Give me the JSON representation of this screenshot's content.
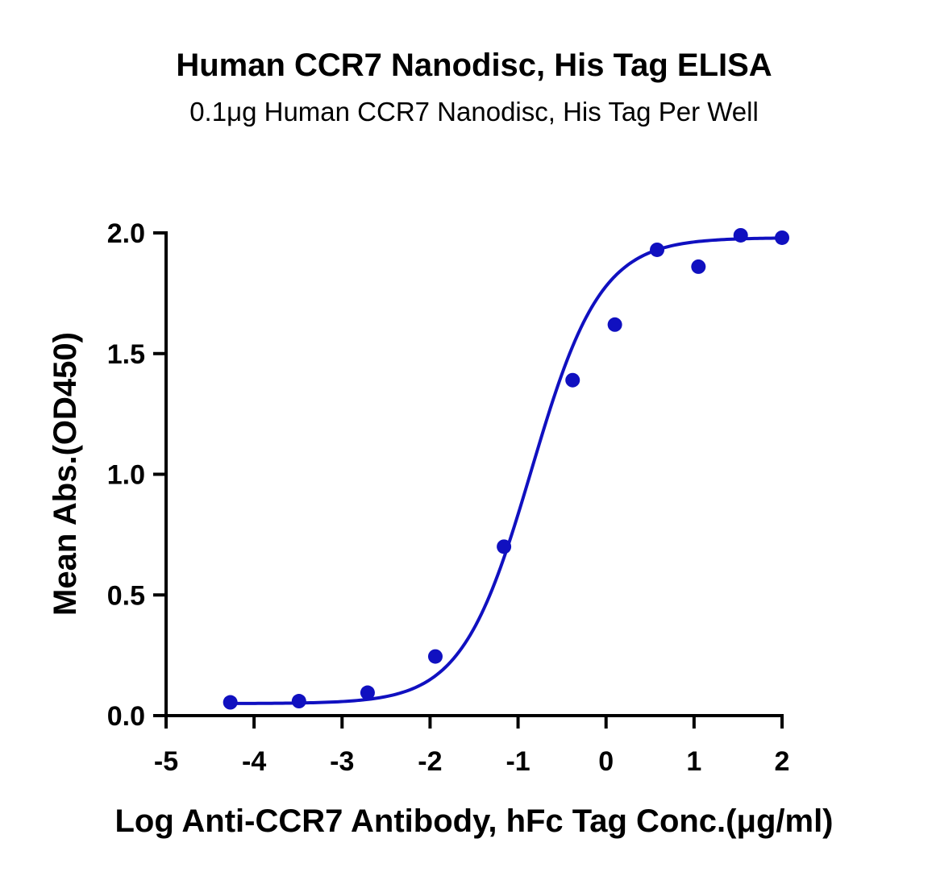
{
  "chart_data": {
    "type": "scatter",
    "title": "Human CCR7 Nanodisc, His Tag ELISA",
    "subtitle": "0.1μg Human CCR7 Nanodisc, His Tag Per Well",
    "xlabel": "Log Anti-CCR7 Antibody, hFc Tag Conc.(μg/ml)",
    "ylabel": "Mean Abs.(OD450)",
    "xlim": [
      -5,
      2
    ],
    "ylim": [
      0,
      2.0
    ],
    "xticks": [
      "-5",
      "-4",
      "-3",
      "-2",
      "-1",
      "0",
      "1",
      "2"
    ],
    "yticks": [
      "0.0",
      "0.5",
      "1.0",
      "1.5",
      "2.0"
    ],
    "grid": false,
    "series": [
      {
        "color": "#1010c0",
        "points": [
          {
            "x": -4.27,
            "y": 0.055
          },
          {
            "x": -3.49,
            "y": 0.06
          },
          {
            "x": -2.71,
            "y": 0.095
          },
          {
            "x": -1.94,
            "y": 0.245
          },
          {
            "x": -1.16,
            "y": 0.7
          },
          {
            "x": -0.38,
            "y": 1.39
          },
          {
            "x": 0.1,
            "y": 1.62
          },
          {
            "x": 0.58,
            "y": 1.93
          },
          {
            "x": 1.05,
            "y": 1.86
          },
          {
            "x": 1.53,
            "y": 1.99
          },
          {
            "x": 2.0,
            "y": 1.98
          }
        ],
        "fit": {
          "model": "4PL",
          "bottom": 0.05,
          "top": 1.98,
          "logEC50": -0.85,
          "hill": 1.1
        }
      }
    ]
  }
}
